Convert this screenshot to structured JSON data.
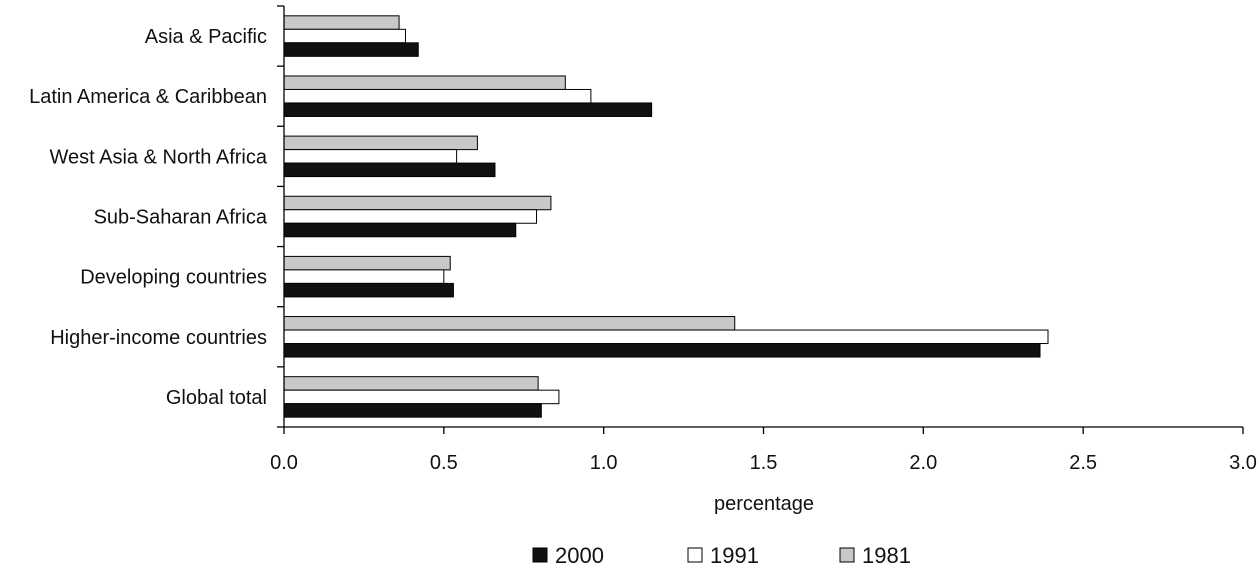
{
  "chart_data": {
    "type": "bar",
    "orientation": "horizontal",
    "title": "",
    "xlabel": "percentage",
    "ylabel": "",
    "xlim": [
      0,
      3.0
    ],
    "xticks": [
      "0.0",
      "0.5",
      "1.0",
      "1.5",
      "2.0",
      "2.5",
      "3.0"
    ],
    "categories": [
      "Asia & Pacific",
      "Latin America & Caribbean",
      "West Asia & North Africa",
      "Sub-Saharan Africa",
      "Developing countries",
      "Higher-income countries",
      "Global total"
    ],
    "series": [
      {
        "name": "1981",
        "color": "#c8c8c8",
        "values": [
          0.36,
          0.88,
          0.605,
          0.835,
          0.52,
          1.41,
          0.795
        ]
      },
      {
        "name": "1991",
        "color": "#ffffff",
        "values": [
          0.38,
          0.96,
          0.54,
          0.79,
          0.5,
          2.39,
          0.86
        ]
      },
      {
        "name": "2000",
        "color": "#111111",
        "values": [
          0.42,
          1.15,
          0.66,
          0.725,
          0.53,
          2.365,
          0.805
        ]
      }
    ],
    "legend": {
      "position": "bottom",
      "order": [
        "2000",
        "1991",
        "1981"
      ]
    },
    "grid": false
  }
}
